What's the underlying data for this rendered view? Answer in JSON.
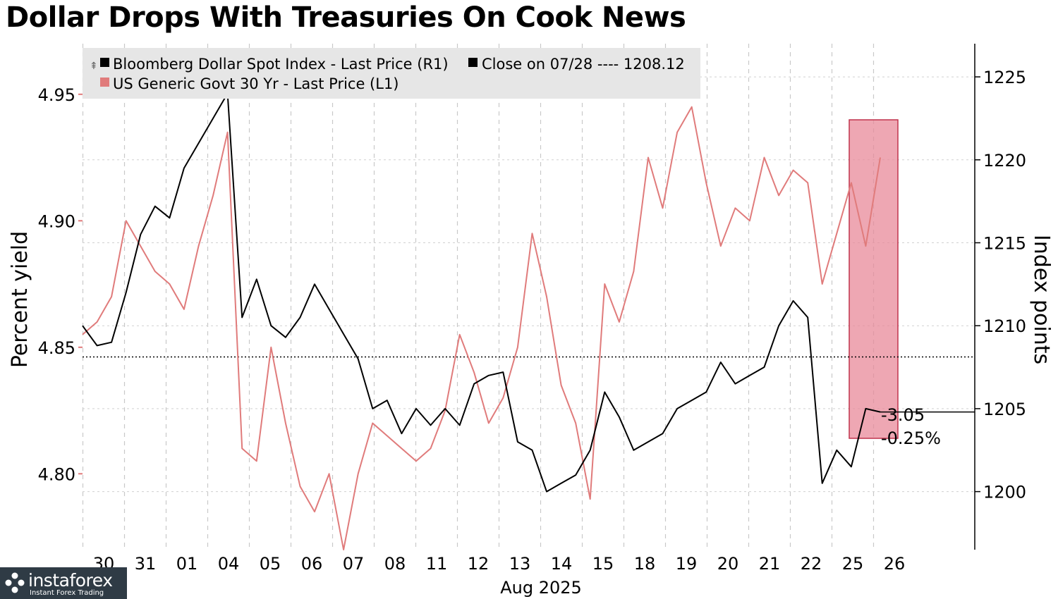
{
  "title": "Dollar Drops With Treasuries On Cook News",
  "chart_data": {
    "type": "line",
    "title": "Dollar Drops With Treasuries On Cook News",
    "x_tick_labels": [
      "30",
      "31",
      "01",
      "04",
      "05",
      "06",
      "07",
      "08",
      "11",
      "12",
      "13",
      "14",
      "15",
      "18",
      "19",
      "20",
      "21",
      "22",
      "25",
      "26"
    ],
    "x_month_label": "Aug 2025",
    "left_axis": {
      "label": "Percent yield",
      "ticks": [
        "4.80",
        "4.85",
        "4.90",
        "4.95"
      ],
      "range": [
        4.77,
        4.97
      ]
    },
    "right_axis": {
      "label": "Index points",
      "ticks": [
        "1200",
        "1205",
        "1210",
        "1215",
        "1220",
        "1225"
      ],
      "range": [
        1196.5,
        1227
      ]
    },
    "grid": true,
    "legend_position": "top-left",
    "series": [
      {
        "name": "Bloomberg Dollar Spot Index - Last Price (R1)",
        "axis": "right",
        "color": "#000000",
        "values": [
          1210.0,
          1208.8,
          1209.0,
          1212.0,
          1215.5,
          1217.2,
          1216.5,
          1219.5,
          1221.0,
          1222.5,
          1224.0,
          1210.5,
          1212.8,
          1210.0,
          1209.3,
          1210.5,
          1212.5,
          1211.0,
          1209.5,
          1208.0,
          1205.0,
          1205.5,
          1203.5,
          1205.0,
          1204.0,
          1205.0,
          1204.0,
          1206.5,
          1207.0,
          1207.2,
          1203.0,
          1202.5,
          1200.0,
          1200.5,
          1201.0,
          1202.5,
          1206.0,
          1204.5,
          1202.5,
          1203.0,
          1203.5,
          1205.0,
          1205.5,
          1206.0,
          1207.8,
          1206.5,
          1207.0,
          1207.5,
          1210.0,
          1211.5,
          1210.5,
          1200.5,
          1202.5,
          1201.5,
          1205.0,
          1204.8
        ],
        "annotation": {
          "change": "-3.05",
          "change_pct": "-0.25%"
        }
      },
      {
        "name": "US Generic Govt 30 Yr - Last Price (L1)",
        "axis": "left",
        "color": "#e07b7b",
        "values": [
          4.855,
          4.86,
          4.87,
          4.9,
          4.89,
          4.88,
          4.875,
          4.865,
          4.89,
          4.91,
          4.935,
          4.81,
          4.805,
          4.85,
          4.82,
          4.795,
          4.785,
          4.8,
          4.77,
          4.8,
          4.82,
          4.815,
          4.81,
          4.805,
          4.81,
          4.825,
          4.855,
          4.84,
          4.82,
          4.83,
          4.85,
          4.895,
          4.87,
          4.835,
          4.82,
          4.79,
          4.875,
          4.86,
          4.88,
          4.925,
          4.905,
          4.935,
          4.945,
          4.915,
          4.89,
          4.905,
          4.9,
          4.925,
          4.91,
          4.92,
          4.915,
          4.875,
          4.895,
          4.915,
          4.89,
          4.925
        ]
      }
    ],
    "reference_line": {
      "label": "Close on 07/28",
      "value": 1208.12,
      "axis": "right"
    },
    "highlight_period": {
      "from_label": "25",
      "to_label": "26"
    }
  },
  "legend": {
    "series1_label": "Bloomberg Dollar Spot Index - Last Price (R1)",
    "close_label": "Close on 07/28 ---- 1208.12",
    "series2_label": "US Generic Govt 30 Yr - Last Price (L1)"
  },
  "watermark": {
    "name": "instaforex",
    "tagline": "Instant Forex Trading"
  },
  "colors": {
    "dollar_line": "#000000",
    "yield_line": "#e07b7b",
    "highlight_fill": "#e88a99",
    "highlight_stroke": "#c0334d"
  }
}
